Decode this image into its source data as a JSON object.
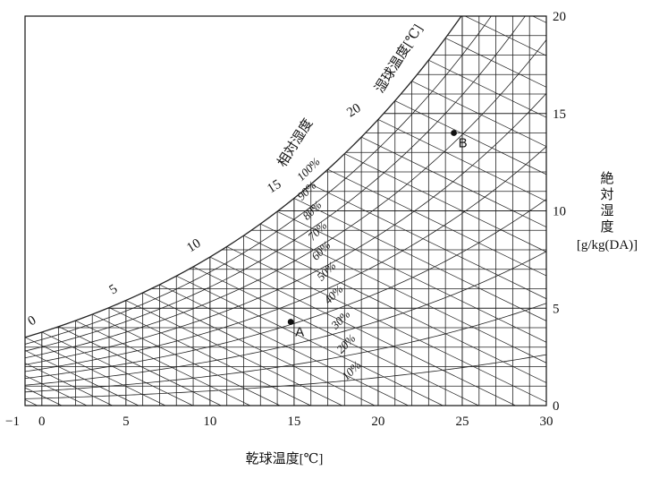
{
  "chart_data": {
    "type": "psychrometric",
    "xlabel": "乾球温度[℃]",
    "ylabel_lines": [
      "絶",
      "対",
      "湿",
      "度",
      "[g/kg(DA)]"
    ],
    "x_ticks": [
      "−1",
      "0",
      "5",
      "10",
      "15",
      "20",
      "25",
      "30"
    ],
    "y_ticks": [
      "0",
      "5",
      "10",
      "15",
      "20"
    ],
    "xlim": [
      -1,
      30
    ],
    "ylim": [
      0,
      20
    ],
    "rh_title": "相対湿度",
    "rh_labels": [
      "100%",
      "90%",
      "80%",
      "70%",
      "60%",
      "50%",
      "40%",
      "30%",
      "20%",
      "10%"
    ],
    "rh_values": [
      100,
      90,
      80,
      70,
      60,
      50,
      40,
      30,
      20,
      10
    ],
    "wb_title": "湿球温度[℃]",
    "wb_labels": [
      "0",
      "5",
      "10",
      "15",
      "20"
    ],
    "points": [
      {
        "label": "A",
        "x": 14.8,
        "y": 4.3
      },
      {
        "label": "B",
        "x": 24.5,
        "y": 14.0
      }
    ]
  }
}
